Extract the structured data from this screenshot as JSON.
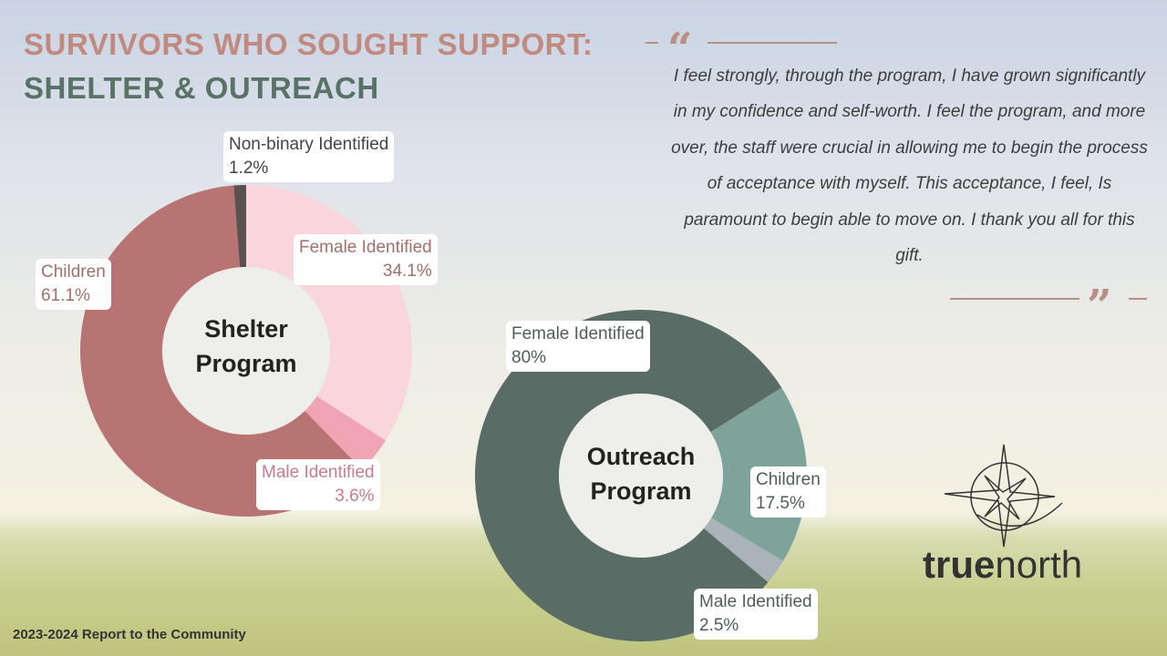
{
  "title_line1": "SURVIVORS WHO SOUGHT SUPPORT:",
  "title_line2": "SHELTER & OUTREACH",
  "quote": "I feel strongly, through the program, I have grown significantly in my confidence and self-worth. I feel the program, and more over, the staff were crucial in allowing me to begin the  process of acceptance with myself. This acceptance, I feel, Is paramount to begin able to move on. I thank you all for this gift.",
  "quote_open": "“",
  "quote_close": "”",
  "footer": "2023-2024 Report to the Community",
  "logo": {
    "bold": "true",
    "light": "north"
  },
  "chart_data": [
    {
      "type": "pie",
      "donut": true,
      "title": "Shelter Program",
      "title_lines": [
        "Shelter",
        "Program"
      ],
      "slices": [
        {
          "label": "Female Identified",
          "value": 34.1,
          "display": "34.1%",
          "color": "#f8d6db"
        },
        {
          "label": "Male Identified",
          "value": 3.6,
          "display": "3.6%",
          "color": "#f1a4b4"
        },
        {
          "label": "Children",
          "value": 61.1,
          "display": "61.1%",
          "color": "#b87373"
        },
        {
          "label": "Non-binary Identified",
          "value": 1.2,
          "display": "1.2%",
          "color": "#5b5150"
        }
      ]
    },
    {
      "type": "pie",
      "donut": true,
      "title": "Outreach Program",
      "title_lines": [
        "Outreach",
        "Program"
      ],
      "slices": [
        {
          "label": "Children",
          "value": 17.5,
          "display": "17.5%",
          "color": "#7ea39b"
        },
        {
          "label": "Male Identified",
          "value": 2.5,
          "display": "2.5%",
          "color": "#a9b3b9"
        },
        {
          "label": "Female Identified",
          "value": 80,
          "display": "80%",
          "color": "#596d66"
        }
      ]
    }
  ]
}
